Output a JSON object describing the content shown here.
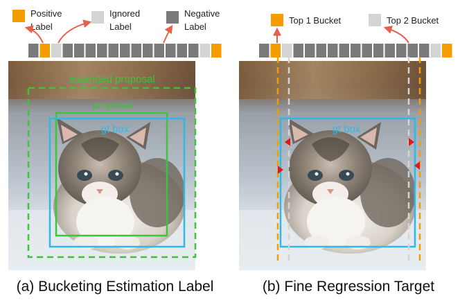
{
  "legend_a": {
    "positive": "Positive",
    "positive_2": "Label",
    "ignored": "Ignored",
    "ignored_2": "Label",
    "negative": "Negative",
    "negative_2": "Label"
  },
  "legend_b": {
    "top1": "Top 1 Bucket",
    "top2": "Top 2 Bucket"
  },
  "panel_a": {
    "extended_proposal": "extended proposal",
    "proposal": "proposal",
    "gt_box": "gt box",
    "caption": "(a) Bucketing Estimation Label"
  },
  "panel_b": {
    "gt_box": "gt box",
    "caption": "(b) Fine Regression Target"
  },
  "colors": {
    "positive": "#f59c00",
    "ignored": "#d4d4d4",
    "negative": "#7a7a7a",
    "gt_box": "#2fb8e8",
    "proposal": "#3cc43c",
    "arrow": "#e8604c",
    "marker": "#e01818"
  },
  "buckets_a": [
    "neg",
    "pos",
    "ign",
    "neg",
    "neg",
    "neg",
    "neg",
    "neg",
    "neg",
    "neg",
    "neg",
    "neg",
    "neg",
    "neg",
    "neg",
    "ign",
    "pos"
  ],
  "buckets_b": [
    "neg",
    "pos",
    "ign",
    "neg",
    "neg",
    "neg",
    "neg",
    "neg",
    "neg",
    "neg",
    "neg",
    "neg",
    "neg",
    "neg",
    "neg",
    "ign",
    "pos"
  ]
}
